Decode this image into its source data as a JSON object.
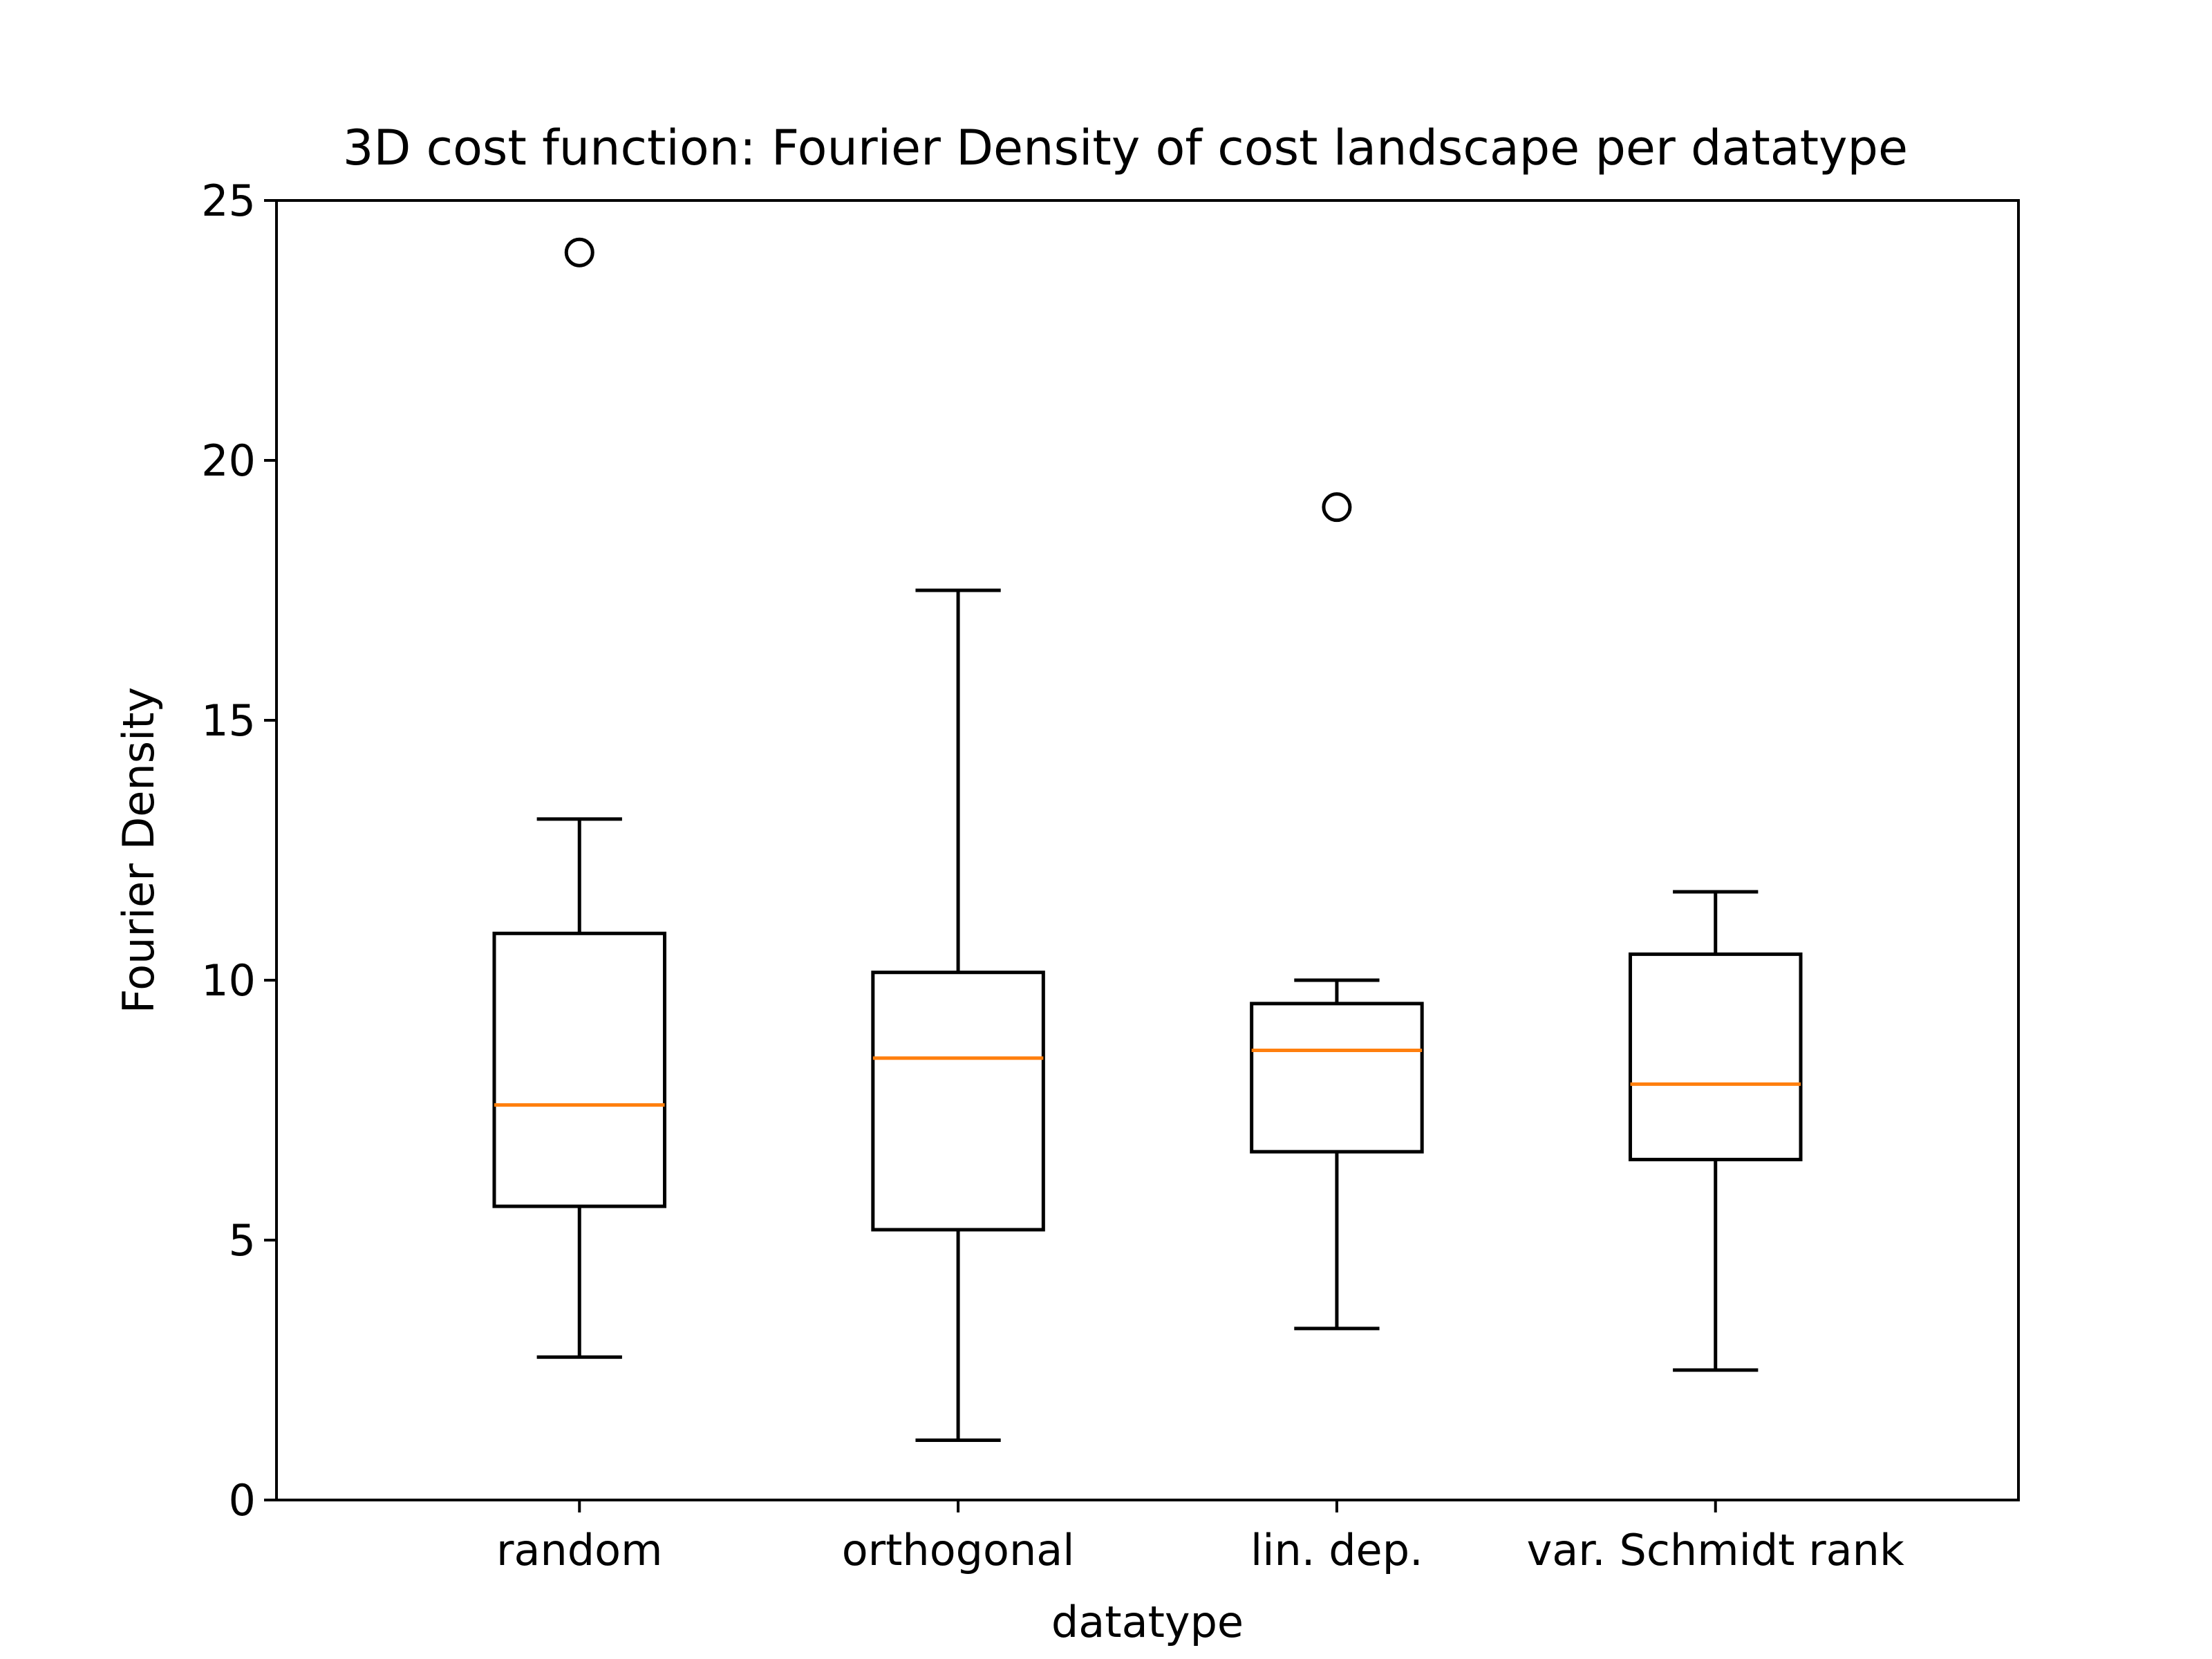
{
  "chart_data": {
    "type": "box",
    "title": "3D cost function: Fourier Density of cost landscape per datatype",
    "xlabel": "datatype",
    "ylabel": "Fourier Density",
    "ylim": [
      0,
      25
    ],
    "yticks": [
      0,
      5,
      10,
      15,
      20,
      25
    ],
    "categories": [
      "random",
      "orthogonal",
      "lin. dep.",
      "var. Schmidt rank"
    ],
    "boxes": [
      {
        "category": "random",
        "whisker_low": 2.75,
        "q1": 5.65,
        "median": 7.6,
        "q3": 10.9,
        "whisker_high": 13.1,
        "outliers": [
          24.0
        ]
      },
      {
        "category": "orthogonal",
        "whisker_low": 1.15,
        "q1": 5.2,
        "median": 8.5,
        "q3": 10.15,
        "whisker_high": 17.5,
        "outliers": []
      },
      {
        "category": "lin. dep.",
        "whisker_low": 3.3,
        "q1": 6.7,
        "median": 8.65,
        "q3": 9.55,
        "whisker_high": 10.0,
        "outliers": [
          19.1
        ]
      },
      {
        "category": "var. Schmidt rank",
        "whisker_low": 2.5,
        "q1": 6.55,
        "median": 8.0,
        "q3": 10.5,
        "whisker_high": 11.7,
        "outliers": []
      }
    ],
    "colors": {
      "box": "#000000",
      "median": "#ff7f0e",
      "outlier_edge": "#000000"
    },
    "grid": false,
    "legend": "none"
  }
}
